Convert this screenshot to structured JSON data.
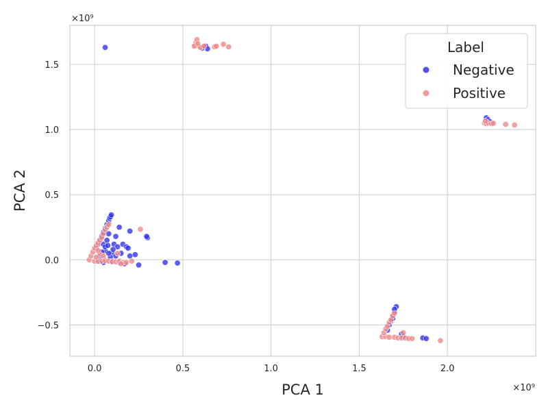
{
  "chart_data": {
    "type": "scatter",
    "title": "",
    "xlabel": "PCA 1",
    "ylabel": "PCA 2",
    "x_offset_label": "×10⁹",
    "y_offset_label": "×10⁹",
    "xlim": [
      -0.14,
      2.5
    ],
    "ylim": [
      -0.74,
      1.8
    ],
    "x_ticks": [
      0.0,
      0.5,
      1.0,
      1.5,
      2.0
    ],
    "x_tick_labels": [
      "0.0",
      "0.5",
      "1.0",
      "1.5",
      "2.0"
    ],
    "y_ticks": [
      -0.5,
      0.0,
      0.5,
      1.0,
      1.5
    ],
    "y_tick_labels": [
      "−0.5",
      "0.0",
      "0.5",
      "1.0",
      "1.5"
    ],
    "grid": true,
    "legend": {
      "title": "Label",
      "placement": "top-right"
    },
    "series": [
      {
        "name": "Negative",
        "color": "#3333ee",
        "points": [
          [
            0.01,
            0.09
          ],
          [
            0.02,
            0.12
          ],
          [
            0.03,
            0.15
          ],
          [
            0.04,
            0.18
          ],
          [
            0.05,
            0.21
          ],
          [
            0.06,
            0.24
          ],
          [
            0.07,
            0.27
          ],
          [
            0.08,
            0.3
          ],
          [
            0.085,
            0.32
          ],
          [
            0.09,
            0.33
          ],
          [
            0.095,
            0.345
          ],
          [
            0.05,
            0.12
          ],
          [
            0.07,
            0.15
          ],
          [
            0.08,
            0.2
          ],
          [
            0.06,
            0.07
          ],
          [
            0.1,
            0.05
          ],
          [
            0.11,
            0.12
          ],
          [
            0.13,
            0.1
          ],
          [
            0.14,
            0.25
          ],
          [
            0.12,
            0.18
          ],
          [
            0.16,
            0.12
          ],
          [
            0.18,
            0.1
          ],
          [
            0.2,
            0.22
          ],
          [
            0.19,
            0.09
          ],
          [
            0.15,
            0.05
          ],
          [
            0.12,
            0.03
          ],
          [
            0.09,
            0.02
          ],
          [
            0.05,
            -0.02
          ],
          [
            0.03,
            0.03
          ],
          [
            0.02,
            -0.01
          ],
          [
            0.1,
            -0.01
          ],
          [
            0.14,
            -0.02
          ],
          [
            0.17,
            -0.03
          ],
          [
            0.2,
            0.03
          ],
          [
            0.23,
            0.04
          ],
          [
            0.25,
            -0.04
          ],
          [
            0.3,
            0.17
          ],
          [
            0.295,
            0.18
          ],
          [
            0.4,
            -0.02
          ],
          [
            0.47,
            -0.025
          ],
          [
            0.08,
            0.05
          ],
          [
            0.06,
            0.1
          ],
          [
            0.04,
            0.06
          ],
          [
            0.105,
            0.08
          ],
          [
            0.075,
            0.11
          ],
          [
            0.06,
            1.63
          ],
          [
            0.63,
            1.64
          ],
          [
            0.64,
            1.62
          ],
          [
            0.61,
            1.625
          ],
          [
            2.22,
            1.09
          ],
          [
            2.23,
            1.075
          ],
          [
            2.25,
            1.05
          ],
          [
            2.24,
            1.06
          ],
          [
            1.7,
            -0.4
          ],
          [
            1.71,
            -0.36
          ],
          [
            1.7,
            -0.38
          ],
          [
            1.69,
            -0.43
          ],
          [
            1.68,
            -0.47
          ],
          [
            1.67,
            -0.5
          ],
          [
            1.66,
            -0.54
          ],
          [
            1.74,
            -0.57
          ],
          [
            1.75,
            -0.59
          ],
          [
            1.86,
            -0.6
          ],
          [
            1.88,
            -0.605
          ],
          [
            1.69,
            -0.45
          ]
        ]
      },
      {
        "name": "Positive",
        "color": "#ee8a8a",
        "points": [
          [
            -0.03,
            0.0
          ],
          [
            -0.02,
            0.03
          ],
          [
            -0.01,
            0.06
          ],
          [
            0.0,
            0.09
          ],
          [
            0.01,
            0.11
          ],
          [
            0.02,
            0.13
          ],
          [
            0.03,
            0.15
          ],
          [
            0.04,
            0.17
          ],
          [
            0.05,
            0.2
          ],
          [
            0.06,
            0.23
          ],
          [
            0.07,
            0.25
          ],
          [
            0.08,
            0.27
          ],
          [
            0.0,
            -0.01
          ],
          [
            0.02,
            -0.01
          ],
          [
            0.04,
            -0.01
          ],
          [
            0.06,
            -0.005
          ],
          [
            0.08,
            -0.01
          ],
          [
            0.1,
            -0.015
          ],
          [
            0.12,
            -0.015
          ],
          [
            0.14,
            -0.01
          ],
          [
            0.16,
            -0.02
          ],
          [
            0.18,
            -0.02
          ],
          [
            0.21,
            -0.01
          ],
          [
            0.26,
            0.235
          ],
          [
            0.03,
            0.04
          ],
          [
            0.05,
            0.03
          ],
          [
            0.01,
            0.02
          ],
          [
            0.13,
            0.05
          ],
          [
            0.15,
            -0.03
          ],
          [
            0.02,
            0.07
          ],
          [
            0.57,
            1.65
          ],
          [
            0.575,
            1.67
          ],
          [
            0.58,
            1.69
          ],
          [
            0.59,
            1.64
          ],
          [
            0.6,
            1.63
          ],
          [
            0.62,
            1.64
          ],
          [
            0.68,
            1.635
          ],
          [
            0.69,
            1.64
          ],
          [
            0.73,
            1.655
          ],
          [
            0.76,
            1.635
          ],
          [
            0.565,
            1.64
          ],
          [
            0.585,
            1.66
          ],
          [
            2.21,
            1.05
          ],
          [
            2.22,
            1.045
          ],
          [
            2.23,
            1.05
          ],
          [
            2.25,
            1.045
          ],
          [
            2.26,
            1.048
          ],
          [
            2.33,
            1.04
          ],
          [
            2.38,
            1.035
          ],
          [
            2.215,
            1.065
          ],
          [
            1.63,
            -0.59
          ],
          [
            1.65,
            -0.59
          ],
          [
            1.67,
            -0.595
          ],
          [
            1.7,
            -0.595
          ],
          [
            1.72,
            -0.6
          ],
          [
            1.74,
            -0.6
          ],
          [
            1.76,
            -0.6
          ],
          [
            1.78,
            -0.605
          ],
          [
            1.8,
            -0.605
          ],
          [
            1.96,
            -0.62
          ],
          [
            1.64,
            -0.56
          ],
          [
            1.65,
            -0.53
          ],
          [
            1.66,
            -0.51
          ],
          [
            1.67,
            -0.48
          ],
          [
            1.68,
            -0.46
          ],
          [
            1.69,
            -0.43
          ],
          [
            1.7,
            -0.41
          ],
          [
            1.75,
            -0.56
          ]
        ]
      }
    ]
  }
}
